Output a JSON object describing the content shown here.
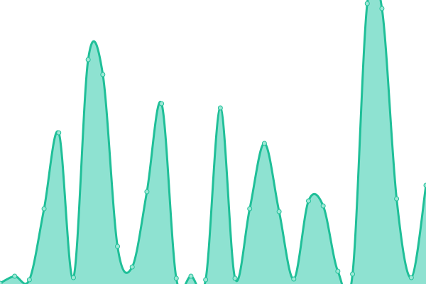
{
  "chart_data": {
    "type": "area",
    "x": [
      0,
      1,
      2,
      3,
      4,
      5,
      6,
      7,
      8,
      9,
      10,
      11,
      12,
      13,
      14,
      15,
      16,
      17,
      18,
      19,
      20,
      21,
      22,
      23,
      24,
      25,
      26,
      27,
      28,
      29
    ],
    "values": [
      1,
      11,
      6,
      106,
      213,
      9,
      316,
      295,
      53,
      24,
      130,
      254,
      8,
      11,
      6,
      248,
      8,
      106,
      198,
      102,
      7,
      117,
      110,
      18,
      14,
      395,
      388,
      120,
      9,
      139
    ],
    "ylim": [
      0,
      400
    ],
    "grid": false,
    "axes_visible": false,
    "curve": "smooth",
    "colors": {
      "line": "#1fbf98",
      "fill": "#8ee2d1",
      "point_fill": "#9ee8d6"
    }
  }
}
